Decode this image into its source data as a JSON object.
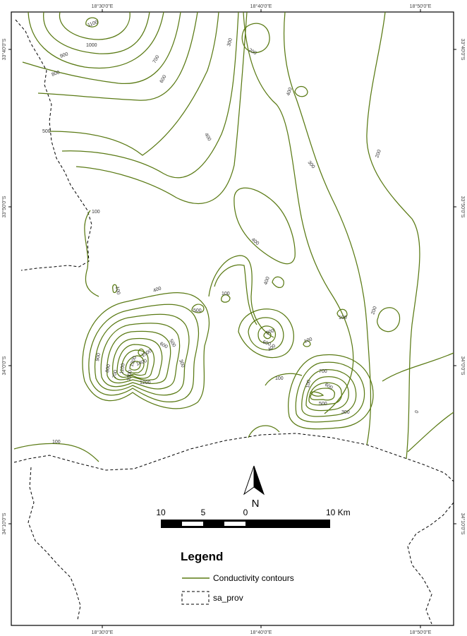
{
  "graticule": {
    "top_ticks": [
      "18°30'0\"E",
      "18°40'0\"E",
      "18°50'0\"E"
    ],
    "bottom_ticks": [
      "18°30'0\"E",
      "18°40'0\"E",
      "18°50'0\"E"
    ],
    "left_ticks": [
      "33°40'0\"S",
      "33°50'0\"S",
      "34°0'0\"S",
      "34°10'0\"S"
    ],
    "right_ticks": [
      "33°40'0\"S",
      "33°50'0\"S",
      "34°0'0\"S",
      "34°10'0\"S"
    ]
  },
  "contour_labels": [
    "1100",
    "1000",
    "900",
    "800",
    "700",
    "600",
    "500",
    "300",
    "200",
    "400",
    "400",
    "300",
    "200",
    "100",
    "400",
    "100",
    "100",
    "400",
    "400",
    "500",
    "100",
    "100",
    "200",
    "500",
    "600",
    "400",
    "100",
    "900",
    "800",
    "700",
    "300",
    "1200",
    "1300",
    "1100",
    "1000",
    "1400",
    "1500",
    "600",
    "500",
    "700",
    "600",
    "500",
    "300",
    "100",
    "100",
    "0"
  ],
  "colors": {
    "contour": "#5a7a14",
    "boundary": "#000000",
    "frame": "#000000",
    "background": "#ffffff"
  },
  "north_arrow": {
    "label": "N"
  },
  "scale_bar": {
    "labels": [
      "10",
      "5",
      "0",
      "10 Km"
    ]
  },
  "legend": {
    "title": "Legend",
    "items": [
      {
        "label": "Conductivity contours",
        "symbol": "contour-line"
      },
      {
        "label": "sa_prov",
        "symbol": "dashed-polygon"
      }
    ]
  }
}
